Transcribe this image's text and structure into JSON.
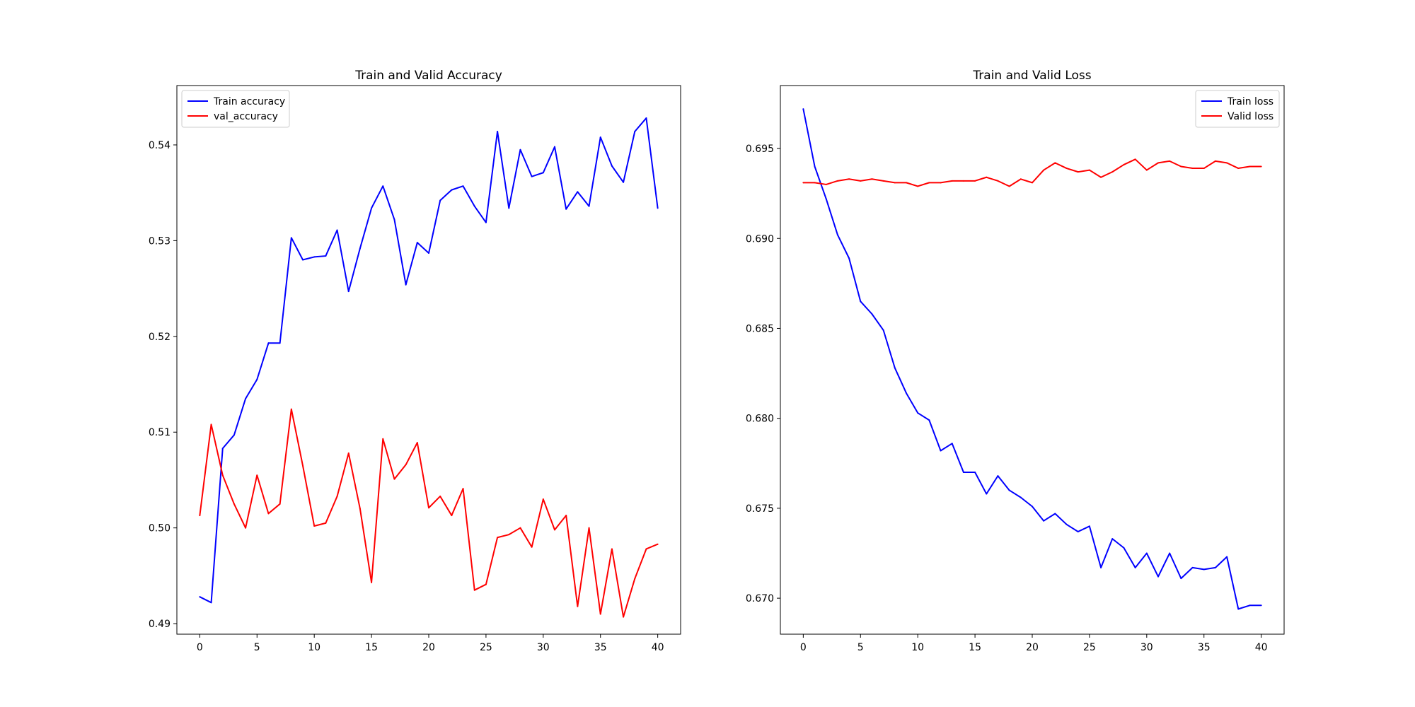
{
  "chart_data": [
    {
      "type": "line",
      "title": "Train and Valid Accuracy",
      "xlabel": "",
      "ylabel": "",
      "xlim": [
        -2,
        42
      ],
      "ylim": [
        0.4889,
        0.5462
      ],
      "xticks": [
        0,
        5,
        10,
        15,
        20,
        25,
        30,
        35,
        40
      ],
      "xtick_labels": [
        "0",
        "5",
        "10",
        "15",
        "20",
        "25",
        "30",
        "35",
        "40"
      ],
      "yticks": [
        0.49,
        0.5,
        0.51,
        0.52,
        0.53,
        0.54
      ],
      "ytick_labels": [
        "0.49",
        "0.50",
        "0.51",
        "0.52",
        "0.53",
        "0.54"
      ],
      "grid": false,
      "legend_position": "upper-left",
      "x": [
        0,
        1,
        2,
        3,
        4,
        5,
        6,
        7,
        8,
        9,
        10,
        11,
        12,
        13,
        14,
        15,
        16,
        17,
        18,
        19,
        20,
        21,
        22,
        23,
        24,
        25,
        26,
        27,
        28,
        29,
        30,
        31,
        32,
        33,
        34,
        35,
        36,
        37,
        38,
        39,
        40
      ],
      "series": [
        {
          "name": "Train accuracy",
          "color": "#0000ff",
          "values": [
            0.4928,
            0.4922,
            0.5083,
            0.5097,
            0.5135,
            0.5155,
            0.5193,
            0.5193,
            0.5303,
            0.528,
            0.5283,
            0.5284,
            0.5311,
            0.5247,
            0.5292,
            0.5334,
            0.5357,
            0.5322,
            0.5254,
            0.5298,
            0.5287,
            0.5342,
            0.5353,
            0.5357,
            0.5336,
            0.5319,
            0.5414,
            0.5334,
            0.5395,
            0.5367,
            0.5371,
            0.5398,
            0.5333,
            0.5351,
            0.5336,
            0.5408,
            0.5378,
            0.5361,
            0.5414,
            0.5428,
            0.5334
          ]
        },
        {
          "name": "val_accuracy",
          "color": "#ff0000",
          "values": [
            0.5013,
            0.5108,
            0.5055,
            0.5025,
            0.5,
            0.5055,
            0.5015,
            0.5025,
            0.5124,
            0.5065,
            0.5002,
            0.5005,
            0.5033,
            0.5078,
            0.502,
            0.4943,
            0.5093,
            0.5051,
            0.5066,
            0.5089,
            0.5021,
            0.5033,
            0.5013,
            0.5041,
            0.4935,
            0.4941,
            0.499,
            0.4993,
            0.5,
            0.498,
            0.503,
            0.4998,
            0.5013,
            0.4918,
            0.5,
            0.491,
            0.4978,
            0.4907,
            0.4947,
            0.4978,
            0.4983
          ]
        }
      ]
    },
    {
      "type": "line",
      "title": "Train and Valid Loss",
      "xlabel": "",
      "ylabel": "",
      "xlim": [
        -2,
        42
      ],
      "ylim": [
        0.668,
        0.6985
      ],
      "xticks": [
        0,
        5,
        10,
        15,
        20,
        25,
        30,
        35,
        40
      ],
      "xtick_labels": [
        "0",
        "5",
        "10",
        "15",
        "20",
        "25",
        "30",
        "35",
        "40"
      ],
      "yticks": [
        0.67,
        0.675,
        0.68,
        0.685,
        0.69,
        0.695
      ],
      "ytick_labels": [
        "0.670",
        "0.675",
        "0.680",
        "0.685",
        "0.690",
        "0.695"
      ],
      "grid": false,
      "legend_position": "upper-right",
      "x": [
        0,
        1,
        2,
        3,
        4,
        5,
        6,
        7,
        8,
        9,
        10,
        11,
        12,
        13,
        14,
        15,
        16,
        17,
        18,
        19,
        20,
        21,
        22,
        23,
        24,
        25,
        26,
        27,
        28,
        29,
        30,
        31,
        32,
        33,
        34,
        35,
        36,
        37,
        38,
        39,
        40
      ],
      "series": [
        {
          "name": "Train loss",
          "color": "#0000ff",
          "values": [
            0.6972,
            0.694,
            0.6922,
            0.6902,
            0.6889,
            0.6865,
            0.6858,
            0.6849,
            0.6828,
            0.6814,
            0.6803,
            0.6799,
            0.6782,
            0.6786,
            0.677,
            0.677,
            0.6758,
            0.6768,
            0.676,
            0.6756,
            0.6751,
            0.6743,
            0.6747,
            0.6741,
            0.6737,
            0.674,
            0.6717,
            0.6733,
            0.6728,
            0.6717,
            0.6725,
            0.6712,
            0.6725,
            0.6711,
            0.6717,
            0.6716,
            0.6717,
            0.6723,
            0.6694,
            0.6696,
            0.6696
          ]
        },
        {
          "name": "Valid loss",
          "color": "#ff0000",
          "values": [
            0.6931,
            0.6931,
            0.693,
            0.6932,
            0.6933,
            0.6932,
            0.6933,
            0.6932,
            0.6931,
            0.6931,
            0.6929,
            0.6931,
            0.6931,
            0.6932,
            0.6932,
            0.6932,
            0.6934,
            0.6932,
            0.6929,
            0.6933,
            0.6931,
            0.6938,
            0.6942,
            0.6939,
            0.6937,
            0.6938,
            0.6934,
            0.6937,
            0.6941,
            0.6944,
            0.6938,
            0.6942,
            0.6943,
            0.694,
            0.6939,
            0.6939,
            0.6943,
            0.6942,
            0.6939,
            0.694,
            0.694
          ]
        }
      ]
    }
  ]
}
